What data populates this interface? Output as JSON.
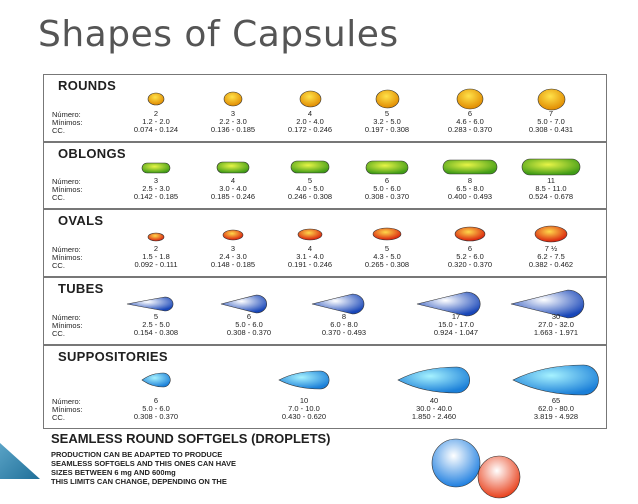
{
  "title": "Shapes of Capsules",
  "row_labels": [
    "Número:",
    "Mínimos:",
    "CC."
  ],
  "categories": [
    {
      "name": "ROUNDS",
      "color_start": "#ffe24a",
      "color_end": "#e08a00",
      "sizes": [
        {
          "number": "2",
          "mm": "1.2 - 2.0",
          "cc": "0.074 - 0.124"
        },
        {
          "number": "3",
          "mm": "2.2 - 3.0",
          "cc": "0.136 - 0.185"
        },
        {
          "number": "4",
          "mm": "2.0 - 4.0",
          "cc": "0.172 - 0.246"
        },
        {
          "number": "5",
          "mm": "3.2 - 5.0",
          "cc": "0.197 - 0.308"
        },
        {
          "number": "6",
          "mm": "4.6 - 6.0",
          "cc": "0.283 - 0.370"
        },
        {
          "number": "7",
          "mm": "5.0 - 7.0",
          "cc": "0.308 - 0.431"
        }
      ]
    },
    {
      "name": "OBLONGS",
      "color_start": "#e8f547",
      "color_end": "#3f9b16",
      "sizes": [
        {
          "number": "3",
          "mm": "2.5 - 3.0",
          "cc": "0.142 - 0.185"
        },
        {
          "number": "4",
          "mm": "3.0 - 4.0",
          "cc": "0.185 - 0.246"
        },
        {
          "number": "5",
          "mm": "4.0 - 5.0",
          "cc": "0.246 - 0.308"
        },
        {
          "number": "6",
          "mm": "5.0 - 6.0",
          "cc": "0.308 - 0.370"
        },
        {
          "number": "8",
          "mm": "6.5 - 8.0",
          "cc": "0.400 - 0.493"
        },
        {
          "number": "11",
          "mm": "8.5 - 11.0",
          "cc": "0.524 - 0.678"
        }
      ]
    },
    {
      "name": "OVALS",
      "color_start": "#ffd84a",
      "color_end": "#d81b0b",
      "sizes": [
        {
          "number": "2",
          "mm": "1.5 - 1.8",
          "cc": "0.092 - 0.111"
        },
        {
          "number": "3",
          "mm": "2.4 - 3.0",
          "cc": "0.148 - 0.185"
        },
        {
          "number": "4",
          "mm": "3.1 - 4.0",
          "cc": "0.191 - 0.246"
        },
        {
          "number": "5",
          "mm": "4.3 - 5.0",
          "cc": "0.265 - 0.308"
        },
        {
          "number": "6",
          "mm": "5.2 - 6.0",
          "cc": "0.320 - 0.370"
        },
        {
          "number": "7 ½",
          "mm": "6.2 - 7.5",
          "cc": "0.382 - 0.462"
        }
      ]
    },
    {
      "name": "TUBES",
      "color_start": "#ffffff",
      "color_end": "#1846b8",
      "sizes": [
        {
          "number": "5",
          "mm": "2.5 - 5.0",
          "cc": "0.154 - 0.308"
        },
        {
          "number": "6",
          "mm": "5.0 - 6.0",
          "cc": "0.308 - 0.370"
        },
        {
          "number": "8",
          "mm": "6.0 - 8.0",
          "cc": "0.370 - 0.493"
        },
        {
          "number": "17",
          "mm": "15.0 - 17.0",
          "cc": "0.924 - 1.047"
        },
        {
          "number": "30",
          "mm": "27.0 - 32.0",
          "cc": "1.663 - 1.971"
        }
      ]
    },
    {
      "name": "SUPPOSITORIES",
      "color_start": "#a6f2ff",
      "color_end": "#1b7fd8",
      "sizes": [
        {
          "number": "6",
          "mm": "5.0 - 6.0",
          "cc": "0.308 - 0.370"
        },
        {
          "number": "10",
          "mm": "7.0 - 10.0",
          "cc": "0.430 - 0.620"
        },
        {
          "number": "40",
          "mm": "30.0 - 40.0",
          "cc": "1.850 - 2.460"
        },
        {
          "number": "65",
          "mm": "62.0 - 80.0",
          "cc": "3.819 - 4.928"
        }
      ]
    }
  ],
  "droplets": {
    "title": "SEAMLESS ROUND SOFTGELS (DROPLETS)",
    "lines": [
      "PRODUCTION CAN BE ADAPTED TO PRODUCE",
      "SEAMLESS SOFTGELS AND THIS ONES CAN HAVE",
      "SIZES BETWEEN 6 mg AND 600mg",
      "THIS LIMITS CAN CHANGE, DEPENDING ON THE"
    ],
    "ball_colors": [
      "#1f7fe0",
      "#e8401b"
    ]
  }
}
